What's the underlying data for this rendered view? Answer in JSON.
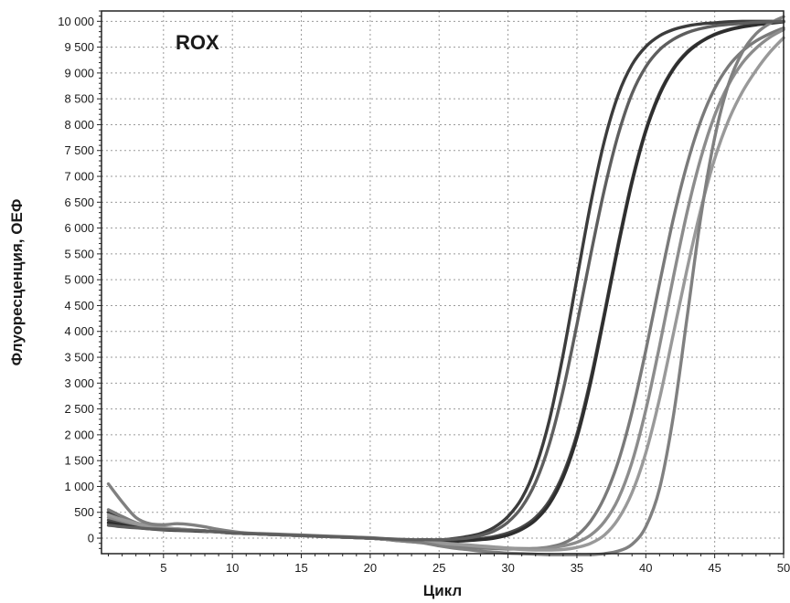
{
  "chart_data": {
    "type": "line",
    "title": "ROX",
    "xlabel": "Цикл",
    "ylabel": "Флуоресценция, ОЕФ",
    "xlim": [
      0.5,
      50
    ],
    "ylim": [
      -300,
      10200
    ],
    "x_ticks": [
      5,
      10,
      15,
      20,
      25,
      30,
      35,
      40,
      45,
      50
    ],
    "x_tick_labels": [
      "5",
      "10",
      "15",
      "20",
      "25",
      "30",
      "35",
      "40",
      "45",
      "50"
    ],
    "y_ticks": [
      0,
      500,
      1000,
      1500,
      2000,
      2500,
      3000,
      3500,
      4000,
      4500,
      5000,
      5500,
      6000,
      6500,
      7000,
      7500,
      8000,
      8500,
      9000,
      9500,
      10000
    ],
    "y_tick_labels": [
      "0",
      "500",
      "1 000",
      "1 500",
      "2 000",
      "2 500",
      "3 000",
      "3 500",
      "4 000",
      "4 500",
      "5 000",
      "5 500",
      "6 000",
      "6 500",
      "7 000",
      "7 500",
      "8 000",
      "8 500",
      "9 000",
      "9 500",
      "10 000"
    ],
    "grid": true,
    "x": [
      1,
      2,
      3,
      4,
      5,
      6,
      7,
      8,
      9,
      10,
      11,
      12,
      13,
      14,
      15,
      16,
      17,
      18,
      19,
      20,
      21,
      22,
      23,
      24,
      25,
      26,
      27,
      28,
      29,
      30,
      31,
      32,
      33,
      34,
      35,
      36,
      37,
      38,
      39,
      40,
      41,
      42,
      43,
      44,
      45,
      46,
      47,
      48,
      49,
      50
    ],
    "series": [
      {
        "color": "#3c3c3c",
        "values": [
          500,
          380,
          270,
          200,
          170,
          160,
          150,
          140,
          120,
          100,
          90,
          80,
          70,
          60,
          50,
          40,
          30,
          20,
          10,
          0,
          -20,
          -40,
          -40,
          -50,
          -40,
          -10,
          30,
          90,
          210,
          420,
          770,
          1370,
          2280,
          3550,
          5020,
          6470,
          7690,
          8580,
          9160,
          9510,
          9720,
          9840,
          9910,
          9950,
          9970,
          9990,
          10000,
          10000,
          10000,
          10000
        ]
      },
      {
        "color": "#4a4a4a",
        "values": [
          350,
          280,
          230,
          190,
          170,
          160,
          150,
          140,
          120,
          100,
          90,
          80,
          70,
          60,
          50,
          40,
          30,
          20,
          10,
          0,
          -20,
          -40,
          -50,
          -60,
          -60,
          -50,
          -40,
          -10,
          30,
          100,
          210,
          400,
          720,
          1240,
          2010,
          3080,
          4360,
          5700,
          6920,
          7900,
          8610,
          9090,
          9410,
          9610,
          9750,
          9840,
          9900,
          9940,
          9970,
          10000
        ]
      },
      {
        "color": "#2e2e2e",
        "values": [
          300,
          250,
          210,
          180,
          160,
          150,
          140,
          130,
          120,
          100,
          90,
          80,
          70,
          60,
          50,
          40,
          30,
          20,
          10,
          0,
          -20,
          -40,
          -50,
          -60,
          -70,
          -60,
          -50,
          -30,
          0,
          60,
          170,
          350,
          660,
          1170,
          1940,
          3010,
          4310,
          5650,
          6880,
          7870,
          8580,
          9070,
          9390,
          9600,
          9740,
          9830,
          9890,
          9930,
          9960,
          9990
        ]
      },
      {
        "color": "#7a7a7a",
        "values": [
          550,
          420,
          300,
          240,
          200,
          180,
          160,
          140,
          120,
          100,
          90,
          80,
          70,
          60,
          50,
          40,
          30,
          20,
          10,
          0,
          -20,
          -50,
          -70,
          -90,
          -110,
          -140,
          -170,
          -190,
          -200,
          -210,
          -210,
          -200,
          -170,
          -100,
          50,
          330,
          790,
          1480,
          2440,
          3630,
          4930,
          6180,
          7240,
          8080,
          8700,
          9130,
          9420,
          9620,
          9760,
          9870
        ]
      },
      {
        "color": "#8c8c8c",
        "values": [
          400,
          330,
          270,
          220,
          190,
          170,
          160,
          140,
          120,
          100,
          90,
          80,
          70,
          60,
          50,
          40,
          30,
          20,
          10,
          0,
          -20,
          -40,
          -60,
          -80,
          -90,
          -110,
          -130,
          -150,
          -170,
          -190,
          -200,
          -200,
          -190,
          -150,
          -80,
          60,
          320,
          760,
          1470,
          2480,
          3720,
          5050,
          6310,
          7360,
          8180,
          8770,
          9190,
          9480,
          9690,
          9840
        ]
      },
      {
        "color": "#999999",
        "values": [
          450,
          360,
          290,
          230,
          200,
          180,
          160,
          140,
          120,
          100,
          90,
          80,
          70,
          60,
          50,
          40,
          30,
          20,
          10,
          0,
          -20,
          -40,
          -60,
          -80,
          -100,
          -120,
          -140,
          -160,
          -180,
          -200,
          -220,
          -230,
          -230,
          -220,
          -180,
          -100,
          60,
          370,
          880,
          1650,
          2700,
          3950,
          5210,
          6370,
          7340,
          8080,
          8630,
          9050,
          9400,
          9680
        ]
      },
      {
        "color": "#808080",
        "values": [
          1050,
          700,
          400,
          280,
          260,
          280,
          260,
          220,
          170,
          130,
          100,
          90,
          80,
          70,
          60,
          50,
          40,
          30,
          20,
          10,
          -10,
          -40,
          -70,
          -100,
          -150,
          -190,
          -220,
          -250,
          -270,
          -290,
          -300,
          -310,
          -320,
          -320,
          -320,
          -320,
          -300,
          -250,
          -120,
          220,
          960,
          2360,
          4280,
          6230,
          7750,
          8780,
          9400,
          9760,
          9960,
          10090
        ]
      },
      {
        "color": "#5e5e5e",
        "values": [
          250,
          220,
          200,
          180,
          170,
          160,
          150,
          140,
          120,
          100,
          90,
          80,
          70,
          60,
          50,
          40,
          30,
          20,
          10,
          0,
          -10,
          -20,
          -30,
          -30,
          -30,
          -20,
          0,
          50,
          140,
          310,
          600,
          1080,
          1820,
          2860,
          4130,
          5480,
          6750,
          7810,
          8600,
          9120,
          9450,
          9650,
          9780,
          9860,
          9910,
          9940,
          9960,
          9980,
          9990,
          10000
        ]
      }
    ]
  }
}
